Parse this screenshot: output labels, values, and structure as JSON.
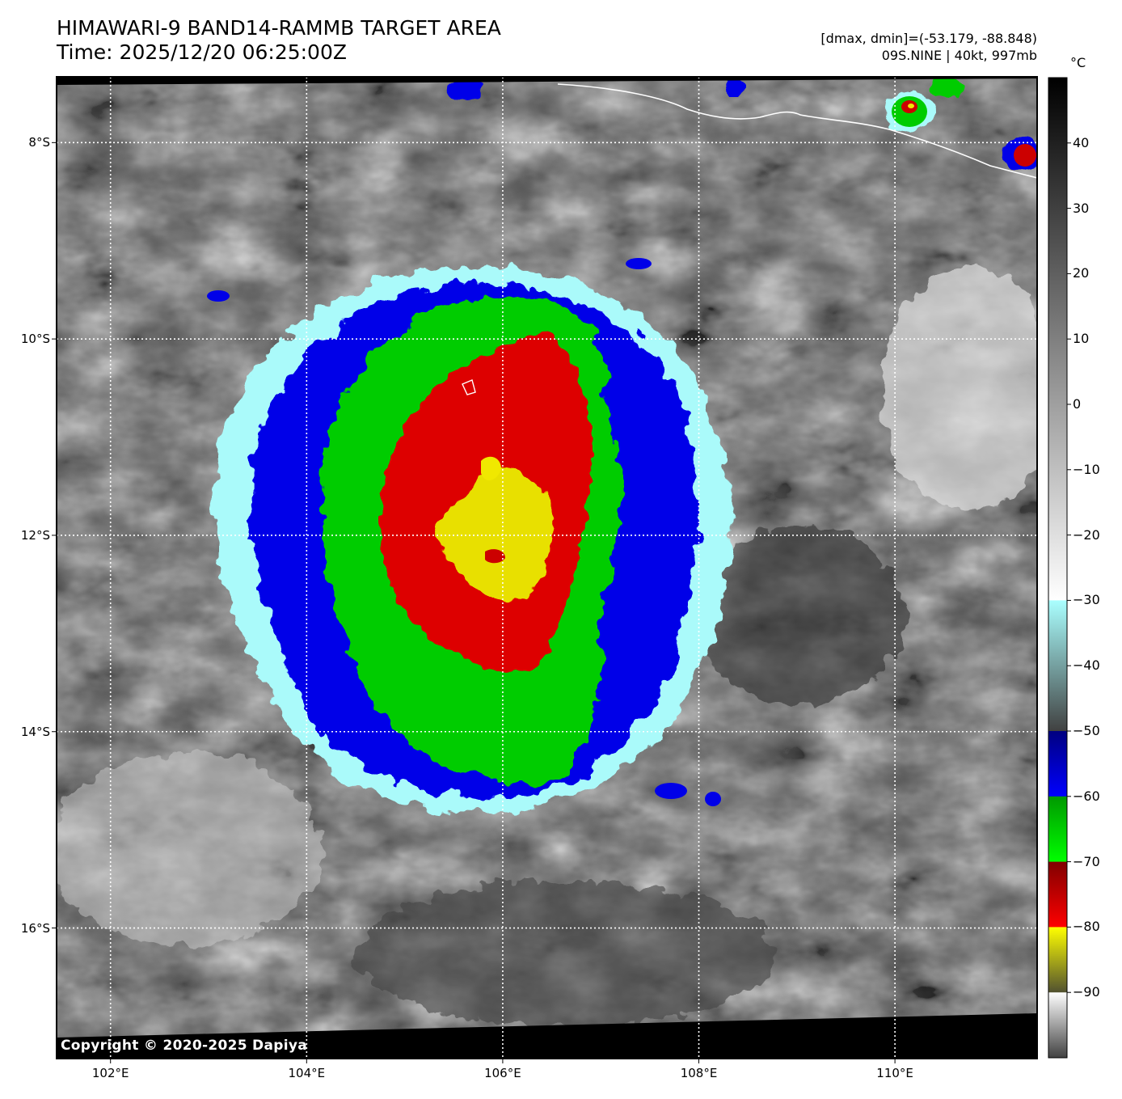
{
  "header": {
    "title_line1": "HIMAWARI-9 BAND14-RAMMB TARGET AREA",
    "title_line2": "Time: 2025/12/20 06:25:00Z",
    "range_line": "[dmax, dmin]=(-53.179, -88.848)",
    "storm_line": "09S.NINE | 40kt, 997mb"
  },
  "copyright": "Copyright © 2020-2025 Dapiya",
  "map": {
    "lon_range": [
      101.45,
      111.45
    ],
    "lat_range": [
      -17.33,
      -7.33
    ],
    "lon_labels": [
      "102°E",
      "104°E",
      "106°E",
      "108°E",
      "110°E"
    ],
    "lon_values": [
      102,
      104,
      106,
      108,
      110
    ],
    "lat_labels": [
      "8°S",
      "10°S",
      "12°S",
      "14°S",
      "16°S"
    ],
    "lat_values": [
      -8,
      -10,
      -12,
      -14,
      -16
    ],
    "storm_center": {
      "lon": 106.0,
      "lat": -12.0
    }
  },
  "colorbar": {
    "unit": "°C",
    "range": [
      -100,
      50
    ],
    "tick_labels": [
      "40",
      "30",
      "20",
      "10",
      "0",
      "−10",
      "−20",
      "−30",
      "−40",
      "−50",
      "−60",
      "−70",
      "−80",
      "−90"
    ],
    "tick_values": [
      40,
      30,
      20,
      10,
      0,
      -10,
      -20,
      -30,
      -40,
      -50,
      -60,
      -70,
      -80,
      -90
    ],
    "segments": [
      {
        "from": 50,
        "to": -30,
        "colors": [
          "#000000",
          "#ffffff"
        ]
      },
      {
        "from": -30,
        "to": -50,
        "colors": [
          "#aaffff",
          "#404040"
        ]
      },
      {
        "from": -50,
        "to": -60,
        "colors": [
          "#000080",
          "#0000ff"
        ]
      },
      {
        "from": -60,
        "to": -70,
        "colors": [
          "#009900",
          "#00ff00"
        ]
      },
      {
        "from": -70,
        "to": -80,
        "colors": [
          "#800000",
          "#ff0000"
        ]
      },
      {
        "from": -80,
        "to": -90,
        "colors": [
          "#ffff00",
          "#505030"
        ]
      },
      {
        "from": -90,
        "to": -100,
        "colors": [
          "#ffffff",
          "#404040"
        ]
      }
    ]
  }
}
